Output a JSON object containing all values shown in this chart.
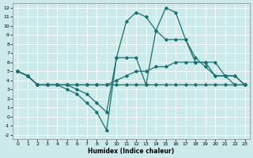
{
  "xlabel": "Humidex (Indice chaleur)",
  "background_color": "#cceaea",
  "grid_color": "#ffffff",
  "line_color": "#1a7070",
  "xlim": [
    -0.5,
    23.5
  ],
  "ylim": [
    -2.5,
    12.5
  ],
  "xticks": [
    0,
    1,
    2,
    3,
    4,
    5,
    6,
    7,
    8,
    9,
    10,
    11,
    12,
    13,
    14,
    15,
    16,
    17,
    18,
    19,
    20,
    21,
    22,
    23
  ],
  "yticks": [
    -2,
    -1,
    0,
    1,
    2,
    3,
    4,
    5,
    6,
    7,
    8,
    9,
    10,
    11,
    12
  ],
  "curves": [
    {
      "x": [
        0,
        1,
        2,
        3,
        4,
        5,
        6,
        7,
        8,
        9,
        10,
        11,
        12,
        13,
        14,
        15,
        16,
        17,
        18,
        19,
        20,
        21,
        22,
        23
      ],
      "y": [
        5.0,
        4.5,
        3.5,
        3.5,
        3.5,
        3.0,
        2.5,
        1.5,
        0.5,
        -1.5,
        6.5,
        6.5,
        6.5,
        3.5,
        9.5,
        12.0,
        11.5,
        8.5,
        6.0,
        6.0,
        4.5,
        4.5,
        3.5,
        3.5
      ]
    },
    {
      "x": [
        0,
        1,
        2,
        3,
        4,
        5,
        6,
        7,
        8,
        9,
        10,
        11,
        12,
        13,
        14,
        15,
        16,
        17,
        18,
        19,
        20,
        21,
        22,
        23
      ],
      "y": [
        5.0,
        4.5,
        3.5,
        3.5,
        3.5,
        3.5,
        3.0,
        2.5,
        1.5,
        0.5,
        6.5,
        10.5,
        11.5,
        11.0,
        9.5,
        8.5,
        8.5,
        8.5,
        6.5,
        5.5,
        4.5,
        4.5,
        4.5,
        3.5
      ]
    },
    {
      "x": [
        0,
        1,
        2,
        3,
        4,
        5,
        6,
        7,
        8,
        9,
        10,
        11,
        12,
        13,
        14,
        15,
        16,
        17,
        18,
        19,
        20,
        21,
        22,
        23
      ],
      "y": [
        5.0,
        4.5,
        3.5,
        3.5,
        3.5,
        3.5,
        3.5,
        3.5,
        3.5,
        3.5,
        4.0,
        4.5,
        5.0,
        5.0,
        5.5,
        5.5,
        6.0,
        6.0,
        6.0,
        6.0,
        6.0,
        4.5,
        4.5,
        3.5
      ]
    },
    {
      "x": [
        0,
        1,
        2,
        3,
        4,
        5,
        6,
        7,
        8,
        9,
        10,
        11,
        12,
        13,
        14,
        15,
        16,
        17,
        18,
        19,
        20,
        21,
        22,
        23
      ],
      "y": [
        5.0,
        4.5,
        3.5,
        3.5,
        3.5,
        3.5,
        3.5,
        3.5,
        3.5,
        3.5,
        3.5,
        3.5,
        3.5,
        3.5,
        3.5,
        3.5,
        3.5,
        3.5,
        3.5,
        3.5,
        3.5,
        3.5,
        3.5,
        3.5
      ]
    }
  ]
}
